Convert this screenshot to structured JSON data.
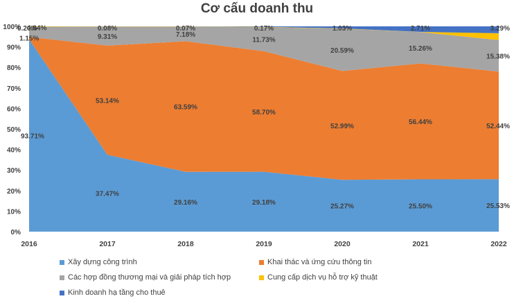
{
  "chart_data": {
    "type": "area",
    "stacked": true,
    "title": "Cơ cấu doanh thu",
    "categories": [
      "2016",
      "2017",
      "2018",
      "2019",
      "2020",
      "2021",
      "2022"
    ],
    "ylim": [
      0,
      100
    ],
    "y_ticks": [
      "0%",
      "10%",
      "20%",
      "30%",
      "40%",
      "50%",
      "60%",
      "70%",
      "80%",
      "90%",
      "100%"
    ],
    "legend_position": "bottom",
    "series": [
      {
        "name": "Xây dựng công trình",
        "color": "#5b9bd5",
        "values": [
          93.71,
          37.47,
          29.16,
          29.18,
          25.27,
          25.5,
          25.53
        ],
        "labels": [
          "93.71%",
          "37.47%",
          "29.16%",
          "29.18%",
          "25.27%",
          "25.50%",
          "25.53%"
        ]
      },
      {
        "name": "Khai thác và ứng cứu thông tin",
        "color": "#ed7d31",
        "values": [
          1.15,
          53.14,
          63.59,
          58.7,
          52.99,
          56.44,
          52.44
        ],
        "labels": [
          "1.15%",
          "53.14%",
          "63.59%",
          "58.70%",
          "52.99%",
          "56.44%",
          "52.44%"
        ]
      },
      {
        "name": "Các hợp đồng thương mại và giải pháp tích hợp",
        "color": "#a5a5a5",
        "values": [
          4.94,
          9.31,
          7.18,
          11.73,
          20.59,
          15.26,
          15.38
        ],
        "labels": [
          "4.94%",
          "9.31%",
          "7.18%",
          "11.73%",
          "20.59%",
          "15.26%",
          "15.38%"
        ]
      },
      {
        "name": "Cung cấp dịch vụ hỗ trợ kỹ thuật",
        "color": "#ffc000",
        "values": [
          0.2,
          0.08,
          0.07,
          0.17,
          0.12,
          0.09,
          3.29
        ],
        "labels": [
          "0.20%",
          "0.08%",
          "0.07%",
          "0.17%",
          "",
          "",
          "3.29%"
        ]
      },
      {
        "name": "Kinh doanh hạ tầng cho thuê",
        "color": "#4472c4",
        "values": [
          0.0,
          0.0,
          0.0,
          0.22,
          1.03,
          2.71,
          3.36
        ],
        "labels": [
          "",
          "",
          "",
          "",
          "1.03%",
          "2.71%",
          ""
        ]
      }
    ]
  }
}
